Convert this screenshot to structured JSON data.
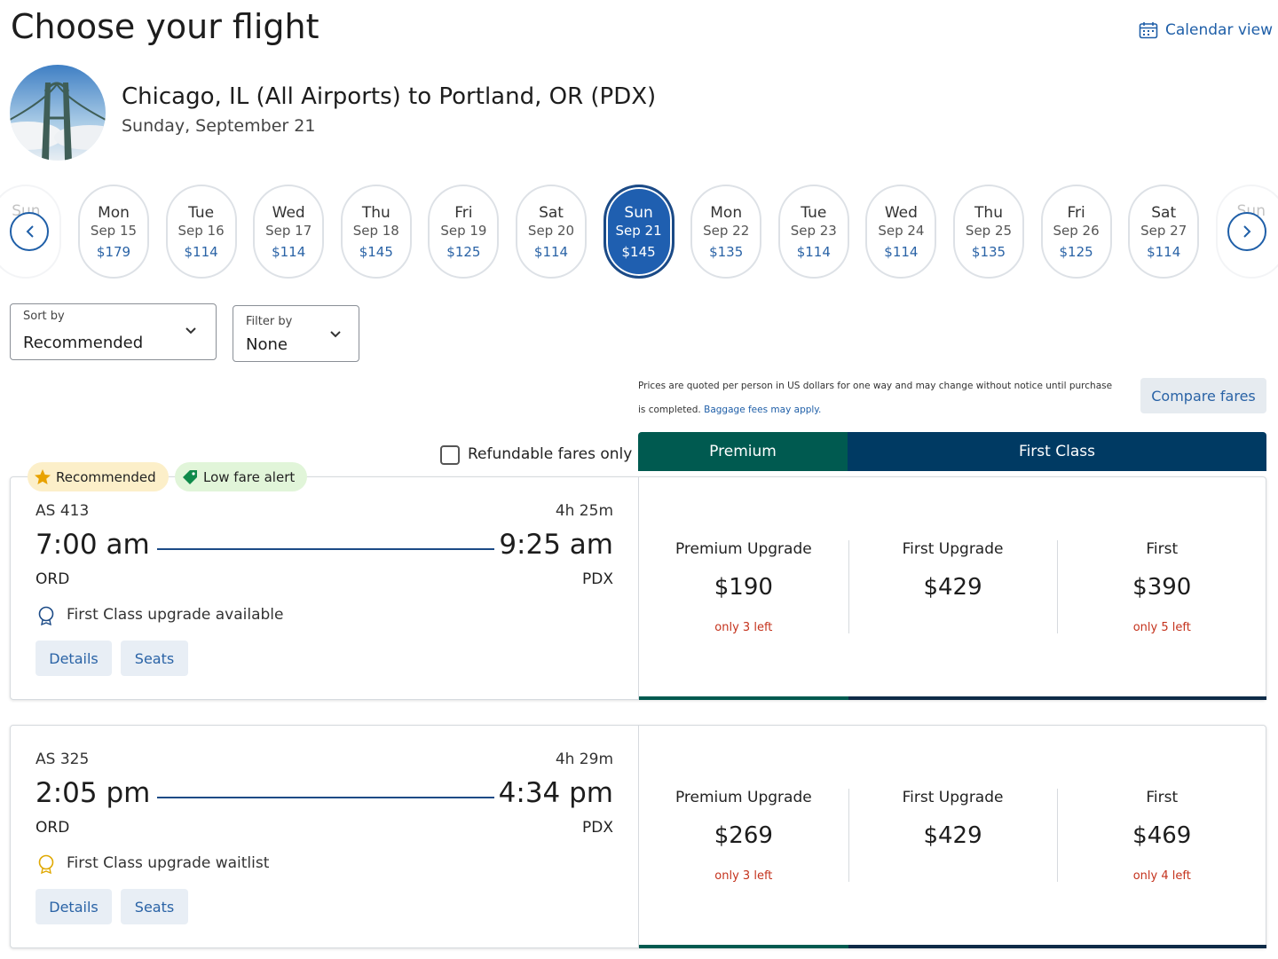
{
  "header": {
    "title": "Choose your flight",
    "calendar_view": "Calendar view"
  },
  "route": {
    "title": "Chicago, IL (All Airports) to Portland, OR (PDX)",
    "date": "Sunday, September 21"
  },
  "edge_days": [
    "Sun",
    "Sun"
  ],
  "dates": [
    {
      "day": "Mon",
      "date": "Sep 15",
      "price": "$179"
    },
    {
      "day": "Tue",
      "date": "Sep 16",
      "price": "$114"
    },
    {
      "day": "Wed",
      "date": "Sep 17",
      "price": "$114"
    },
    {
      "day": "Thu",
      "date": "Sep 18",
      "price": "$145"
    },
    {
      "day": "Fri",
      "date": "Sep 19",
      "price": "$125"
    },
    {
      "day": "Sat",
      "date": "Sep 20",
      "price": "$114"
    },
    {
      "day": "Sun",
      "date": "Sep 21",
      "price": "$145",
      "selected": true
    },
    {
      "day": "Mon",
      "date": "Sep 22",
      "price": "$135"
    },
    {
      "day": "Tue",
      "date": "Sep 23",
      "price": "$114"
    },
    {
      "day": "Wed",
      "date": "Sep 24",
      "price": "$114"
    },
    {
      "day": "Thu",
      "date": "Sep 25",
      "price": "$135"
    },
    {
      "day": "Fri",
      "date": "Sep 26",
      "price": "$125"
    },
    {
      "day": "Sat",
      "date": "Sep 27",
      "price": "$114"
    }
  ],
  "sort": {
    "label": "Sort by",
    "value": "Recommended"
  },
  "filter": {
    "label": "Filter by",
    "value": "None"
  },
  "notice": {
    "text": "Prices are quoted per person in US dollars for one way and may change without notice until purchase is completed.",
    "link": "Baggage fees may apply."
  },
  "compare_fares": "Compare fares",
  "refundable": "Refundable fares only",
  "tabs": [
    "Premium",
    "First Class"
  ],
  "flights": [
    {
      "badges": [
        "Recommended",
        "Low fare alert"
      ],
      "number": "AS 413",
      "duration": "4h 25m",
      "depart_time": "7:00 am",
      "arrive_time": "9:25 am",
      "from": "ORD",
      "to": "PDX",
      "upgrade": "First Class upgrade available",
      "buttons": [
        "Details",
        "Seats"
      ],
      "fares": [
        {
          "name": "Premium Upgrade",
          "price": "$190",
          "note": "only 3 left"
        },
        {
          "name": "First Upgrade",
          "price": "$429"
        },
        {
          "name": "First",
          "price": "$390",
          "note": "only 5 left"
        }
      ]
    },
    {
      "badges": [],
      "number": "AS 325",
      "duration": "4h 29m",
      "depart_time": "2:05 pm",
      "arrive_time": "4:34 pm",
      "from": "ORD",
      "to": "PDX",
      "upgrade": "First Class upgrade waitlist",
      "buttons": [
        "Details",
        "Seats"
      ],
      "fares": [
        {
          "name": "Premium Upgrade",
          "price": "$269",
          "note": "only 3 left"
        },
        {
          "name": "First Upgrade",
          "price": "$429"
        },
        {
          "name": "First",
          "price": "$469",
          "note": "only 4 left"
        }
      ]
    }
  ]
}
